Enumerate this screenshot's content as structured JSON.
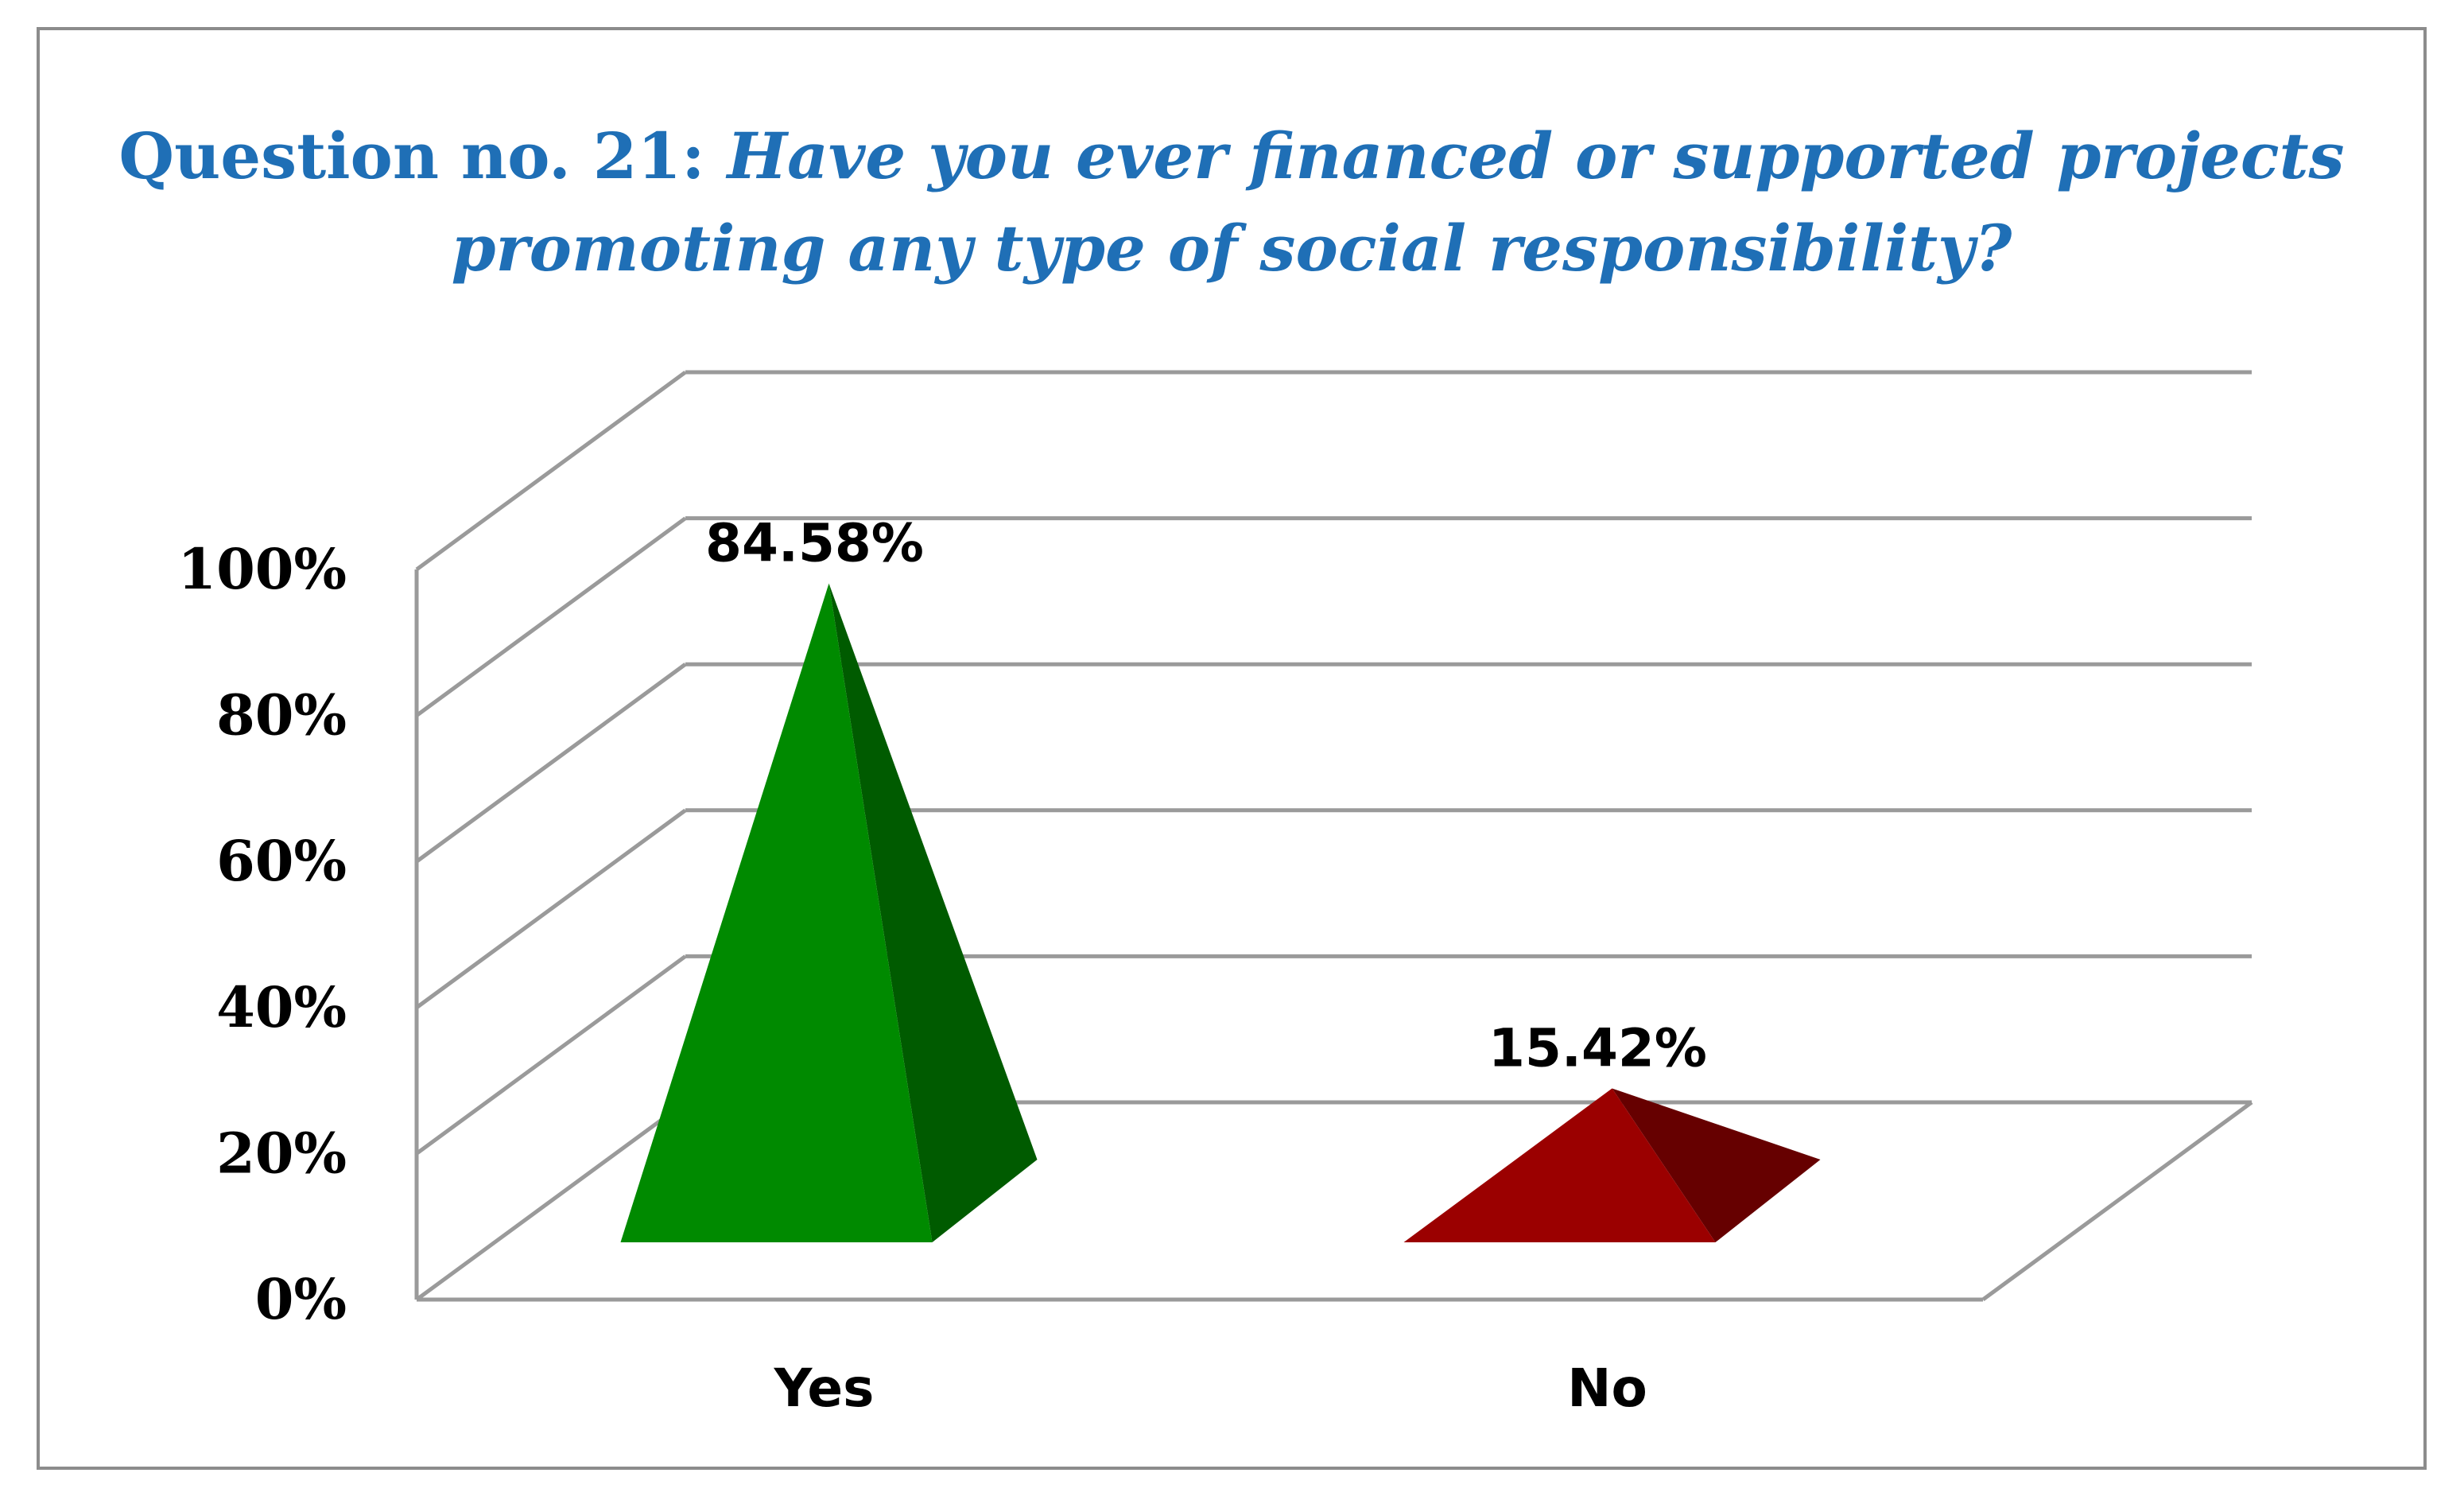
{
  "chart_data": {
    "type": "bar",
    "title_prefix": "Question no. 21:",
    "title": "Have you ever financed or supported projects promoting any type of social responsibility?",
    "categories": [
      "Yes",
      "No"
    ],
    "values": [
      84.58,
      15.42
    ],
    "data_labels": [
      "84.58%",
      "15.42%"
    ],
    "ylim": [
      0,
      100
    ],
    "yticks": [
      0,
      20,
      40,
      60,
      80,
      100
    ],
    "ytick_labels": [
      "0%",
      "20%",
      "40%",
      "60%",
      "80%",
      "100%"
    ],
    "bar_shape": "3d-pyramid",
    "colors": [
      "#008a00",
      "#9b0000"
    ],
    "grid": true,
    "legend": "none"
  }
}
